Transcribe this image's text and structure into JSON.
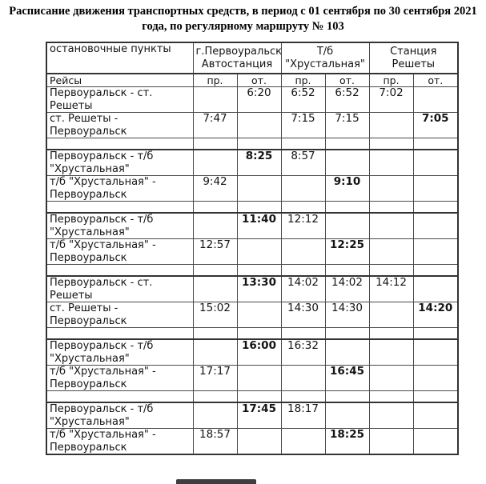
{
  "title": {
    "line1": "Расписание движения транспортных средств, в период с 01 сентября по 30 сентября 2021",
    "line2": "года, по регулярному маршруту № 103"
  },
  "table": {
    "corner_label": "остановочные пункты",
    "trips_label": "Рейсы",
    "arr_label": "пр.",
    "dep_label": "от.",
    "stops": [
      {
        "line1": "г.Первоуральск",
        "line2": "Автостанция"
      },
      {
        "line1": "Т/б",
        "line2": "\"Хрустальная\""
      },
      {
        "line1": "Станция",
        "line2": "Решеты"
      }
    ],
    "rows": [
      {
        "type": "data",
        "label": "Первоуральск - ст. Решеты",
        "times": [
          {
            "t": "",
            "bold": false
          },
          {
            "t": "6:20",
            "bold": false
          },
          {
            "t": "6:52",
            "bold": false
          },
          {
            "t": "6:52",
            "bold": false
          },
          {
            "t": "7:02",
            "bold": false
          },
          {
            "t": "",
            "bold": false
          }
        ]
      },
      {
        "type": "data",
        "label": "ст. Решеты - Первоуральск",
        "times": [
          {
            "t": "7:47",
            "bold": false
          },
          {
            "t": "",
            "bold": false
          },
          {
            "t": "7:15",
            "bold": false
          },
          {
            "t": "7:15",
            "bold": false
          },
          {
            "t": "",
            "bold": false
          },
          {
            "t": "7:05",
            "bold": true
          }
        ]
      },
      {
        "type": "spacer"
      },
      {
        "type": "data",
        "label": "Первоуральск - т/б \"Хрустальная\"",
        "times": [
          {
            "t": "",
            "bold": false
          },
          {
            "t": "8:25",
            "bold": true
          },
          {
            "t": "8:57",
            "bold": false
          },
          {
            "t": "",
            "bold": false
          },
          {
            "t": "",
            "bold": false
          },
          {
            "t": "",
            "bold": false
          }
        ]
      },
      {
        "type": "data",
        "label": "т/б \"Хрустальная\" - Первоуральск",
        "times": [
          {
            "t": "9:42",
            "bold": false
          },
          {
            "t": "",
            "bold": false
          },
          {
            "t": "",
            "bold": false
          },
          {
            "t": "9:10",
            "bold": true
          },
          {
            "t": "",
            "bold": false
          },
          {
            "t": "",
            "bold": false
          }
        ]
      },
      {
        "type": "spacer"
      },
      {
        "type": "data",
        "label": "Первоуральск - т/б \"Хрустальная\"",
        "times": [
          {
            "t": "",
            "bold": false
          },
          {
            "t": "11:40",
            "bold": true
          },
          {
            "t": "12:12",
            "bold": false
          },
          {
            "t": "",
            "bold": false
          },
          {
            "t": "",
            "bold": false
          },
          {
            "t": "",
            "bold": false
          }
        ]
      },
      {
        "type": "data",
        "label": "т/б \"Хрустальная\" - Первоуральск",
        "times": [
          {
            "t": "12:57",
            "bold": false
          },
          {
            "t": "",
            "bold": false
          },
          {
            "t": "",
            "bold": false
          },
          {
            "t": "12:25",
            "bold": true
          },
          {
            "t": "",
            "bold": false
          },
          {
            "t": "",
            "bold": false
          }
        ]
      },
      {
        "type": "spacer"
      },
      {
        "type": "data",
        "label": "Первоуральск - ст. Решеты",
        "times": [
          {
            "t": "",
            "bold": false
          },
          {
            "t": "13:30",
            "bold": true
          },
          {
            "t": "14:02",
            "bold": false
          },
          {
            "t": "14:02",
            "bold": false
          },
          {
            "t": "14:12",
            "bold": false
          },
          {
            "t": "",
            "bold": false
          }
        ]
      },
      {
        "type": "data",
        "label": "ст. Решеты - Первоуральск",
        "times": [
          {
            "t": "15:02",
            "bold": false
          },
          {
            "t": "",
            "bold": false
          },
          {
            "t": "14:30",
            "bold": false
          },
          {
            "t": "14:30",
            "bold": false
          },
          {
            "t": "",
            "bold": false
          },
          {
            "t": "14:20",
            "bold": true
          }
        ]
      },
      {
        "type": "spacer"
      },
      {
        "type": "data",
        "label": "Первоуральск - т/б \"Хрустальная\"",
        "times": [
          {
            "t": "",
            "bold": false
          },
          {
            "t": "16:00",
            "bold": true
          },
          {
            "t": "16:32",
            "bold": false
          },
          {
            "t": "",
            "bold": false
          },
          {
            "t": "",
            "bold": false
          },
          {
            "t": "",
            "bold": false
          }
        ]
      },
      {
        "type": "data",
        "label": "т/б \"Хрустальная\" - Первоуральск",
        "times": [
          {
            "t": "17:17",
            "bold": false
          },
          {
            "t": "",
            "bold": false
          },
          {
            "t": "",
            "bold": false
          },
          {
            "t": "16:45",
            "bold": true
          },
          {
            "t": "",
            "bold": false
          },
          {
            "t": "",
            "bold": false
          }
        ]
      },
      {
        "type": "spacer"
      },
      {
        "type": "data",
        "label": "Первоуральск - т/б \"Хрустальная\"",
        "times": [
          {
            "t": "",
            "bold": false
          },
          {
            "t": "17:45",
            "bold": true
          },
          {
            "t": "18:17",
            "bold": false
          },
          {
            "t": "",
            "bold": false
          },
          {
            "t": "",
            "bold": false
          },
          {
            "t": "",
            "bold": false
          }
        ]
      },
      {
        "type": "data",
        "label": "т/б \"Хрустальная\" - Первоуральск",
        "times": [
          {
            "t": "18:57",
            "bold": false
          },
          {
            "t": "",
            "bold": false
          },
          {
            "t": "",
            "bold": false
          },
          {
            "t": "18:25",
            "bold": true
          },
          {
            "t": "",
            "bold": false
          },
          {
            "t": "",
            "bold": false
          }
        ]
      }
    ]
  },
  "colors": {
    "border_thin": "#4a4a4a",
    "border_thick": "#333333",
    "text": "#141414",
    "background": "#ffffff"
  }
}
